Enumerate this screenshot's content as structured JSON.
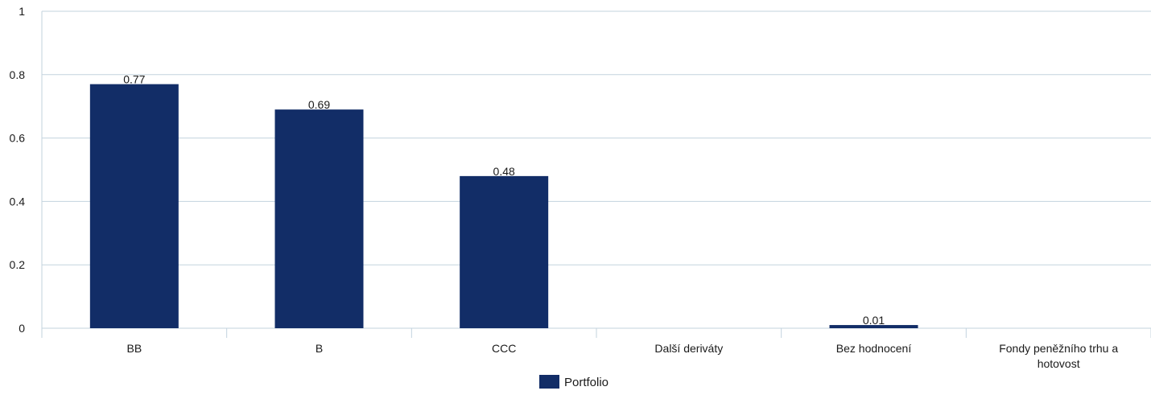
{
  "chart_data": {
    "type": "bar",
    "categories": [
      "BB",
      "B",
      "CCC",
      "Další deriváty",
      "Bez hodnocení",
      "Fondy peněžního trhu a hotovost"
    ],
    "series": [
      {
        "name": "Portfolio",
        "values": [
          0.77,
          0.69,
          0.48,
          0,
          0.01,
          0
        ],
        "data_labels": [
          "0.77",
          "0.69",
          "0.48",
          "",
          "0.01",
          ""
        ]
      }
    ],
    "ylim": [
      0,
      1
    ],
    "yticks": [
      0,
      0.2,
      0.4,
      0.6,
      0.8,
      1
    ],
    "ytick_labels": [
      "0",
      "0.2",
      "0.4",
      "0.6",
      "0.8",
      "1"
    ],
    "grid": true,
    "legend_position": "bottom-center",
    "colors": {
      "bar": "#122d67",
      "grid": "#c3d3de",
      "text": "#1a1a1a"
    }
  }
}
